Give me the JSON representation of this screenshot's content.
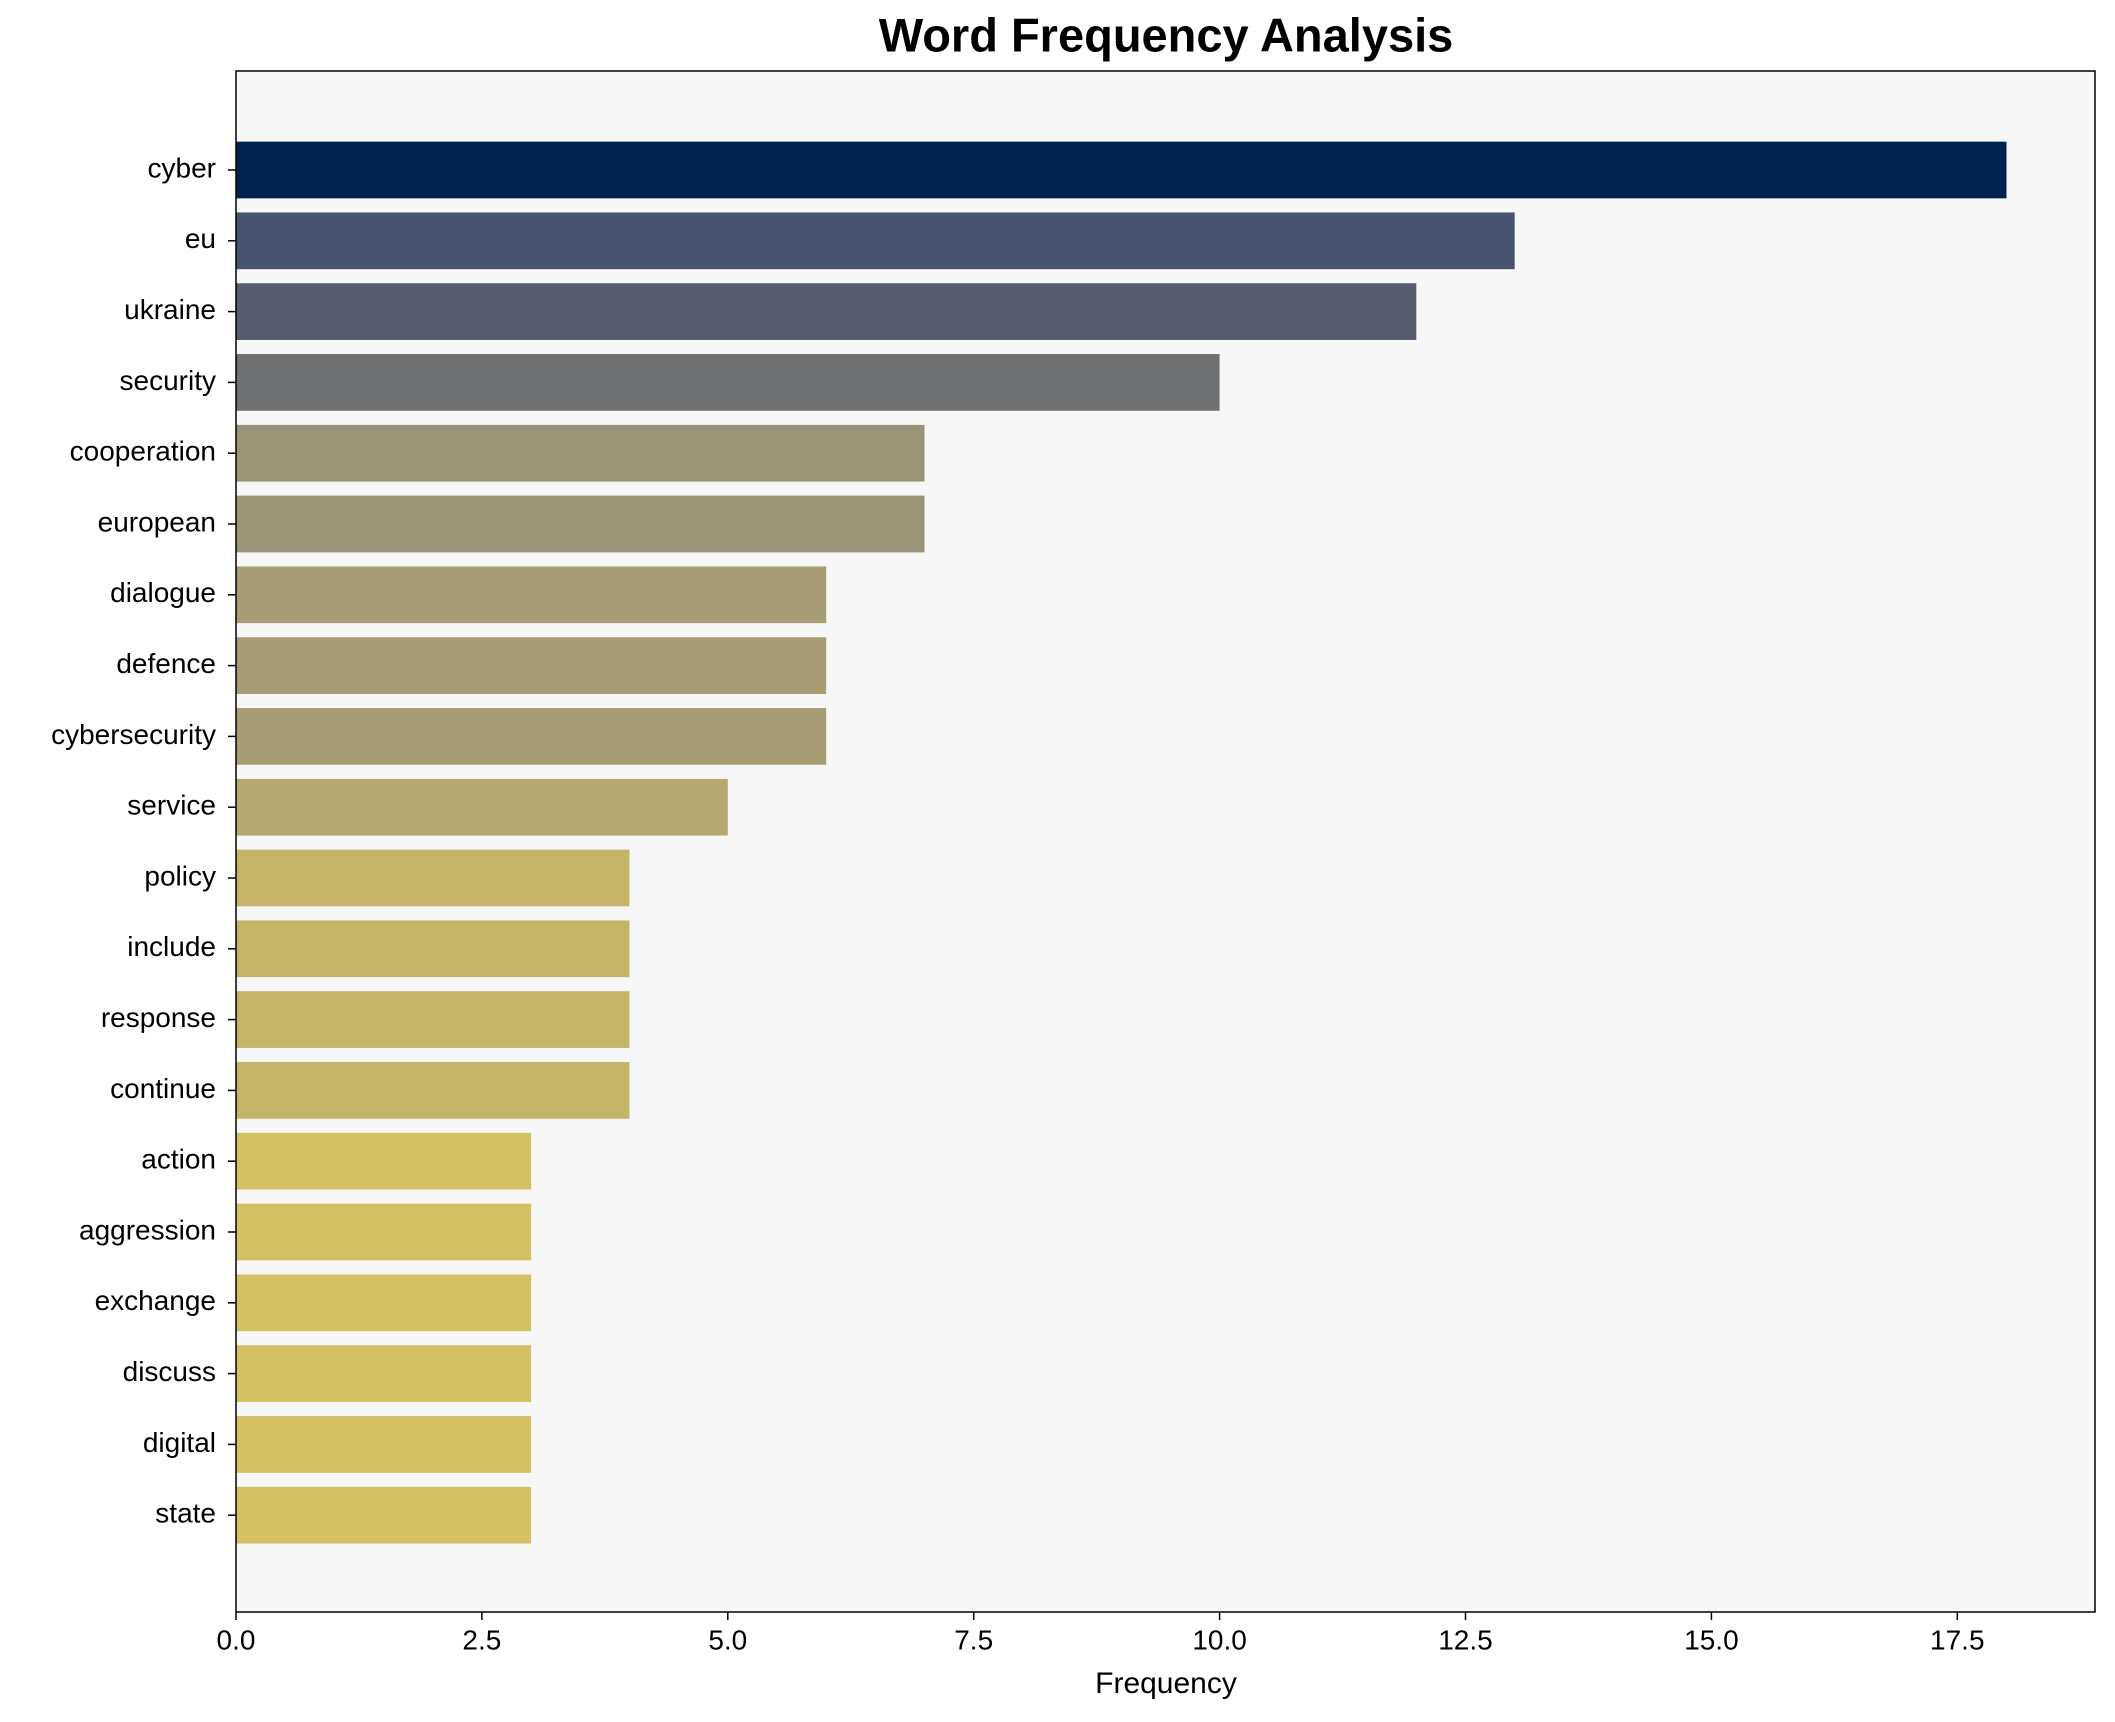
{
  "chart_data": {
    "type": "barh",
    "title": "Word Frequency Analysis",
    "xlabel": "Frequency",
    "categories": [
      "cyber",
      "eu",
      "ukraine",
      "security",
      "cooperation",
      "european",
      "dialogue",
      "defence",
      "cybersecurity",
      "service",
      "policy",
      "include",
      "response",
      "continue",
      "action",
      "aggression",
      "exchange",
      "discuss",
      "digital",
      "state"
    ],
    "values": [
      18,
      13,
      12,
      10,
      7,
      7,
      6,
      6,
      6,
      5,
      4,
      4,
      4,
      4,
      3,
      3,
      3,
      3,
      3,
      3
    ],
    "colors": [
      "#00224e",
      "#48536f",
      "#575d6d",
      "#707173",
      "#9a9377",
      "#9a9377",
      "#a69d75",
      "#a69d75",
      "#a69d75",
      "#b5a972",
      "#c4b468",
      "#c4b468",
      "#c4b468",
      "#c4b468",
      "#d3c164",
      "#d3c164",
      "#d3c164",
      "#d3c164",
      "#d3c164",
      "#d3c164"
    ],
    "xlim": [
      0,
      18.9
    ],
    "xticks": [
      {
        "value": 0,
        "label": "0.0"
      },
      2.5,
      {
        "value": 5,
        "label": "5.0"
      },
      7.5,
      {
        "value": 10,
        "label": "10.0"
      },
      12.5,
      {
        "value": 15,
        "label": "15.0"
      },
      17.5
    ],
    "plot_background": "#f7f7f7"
  }
}
